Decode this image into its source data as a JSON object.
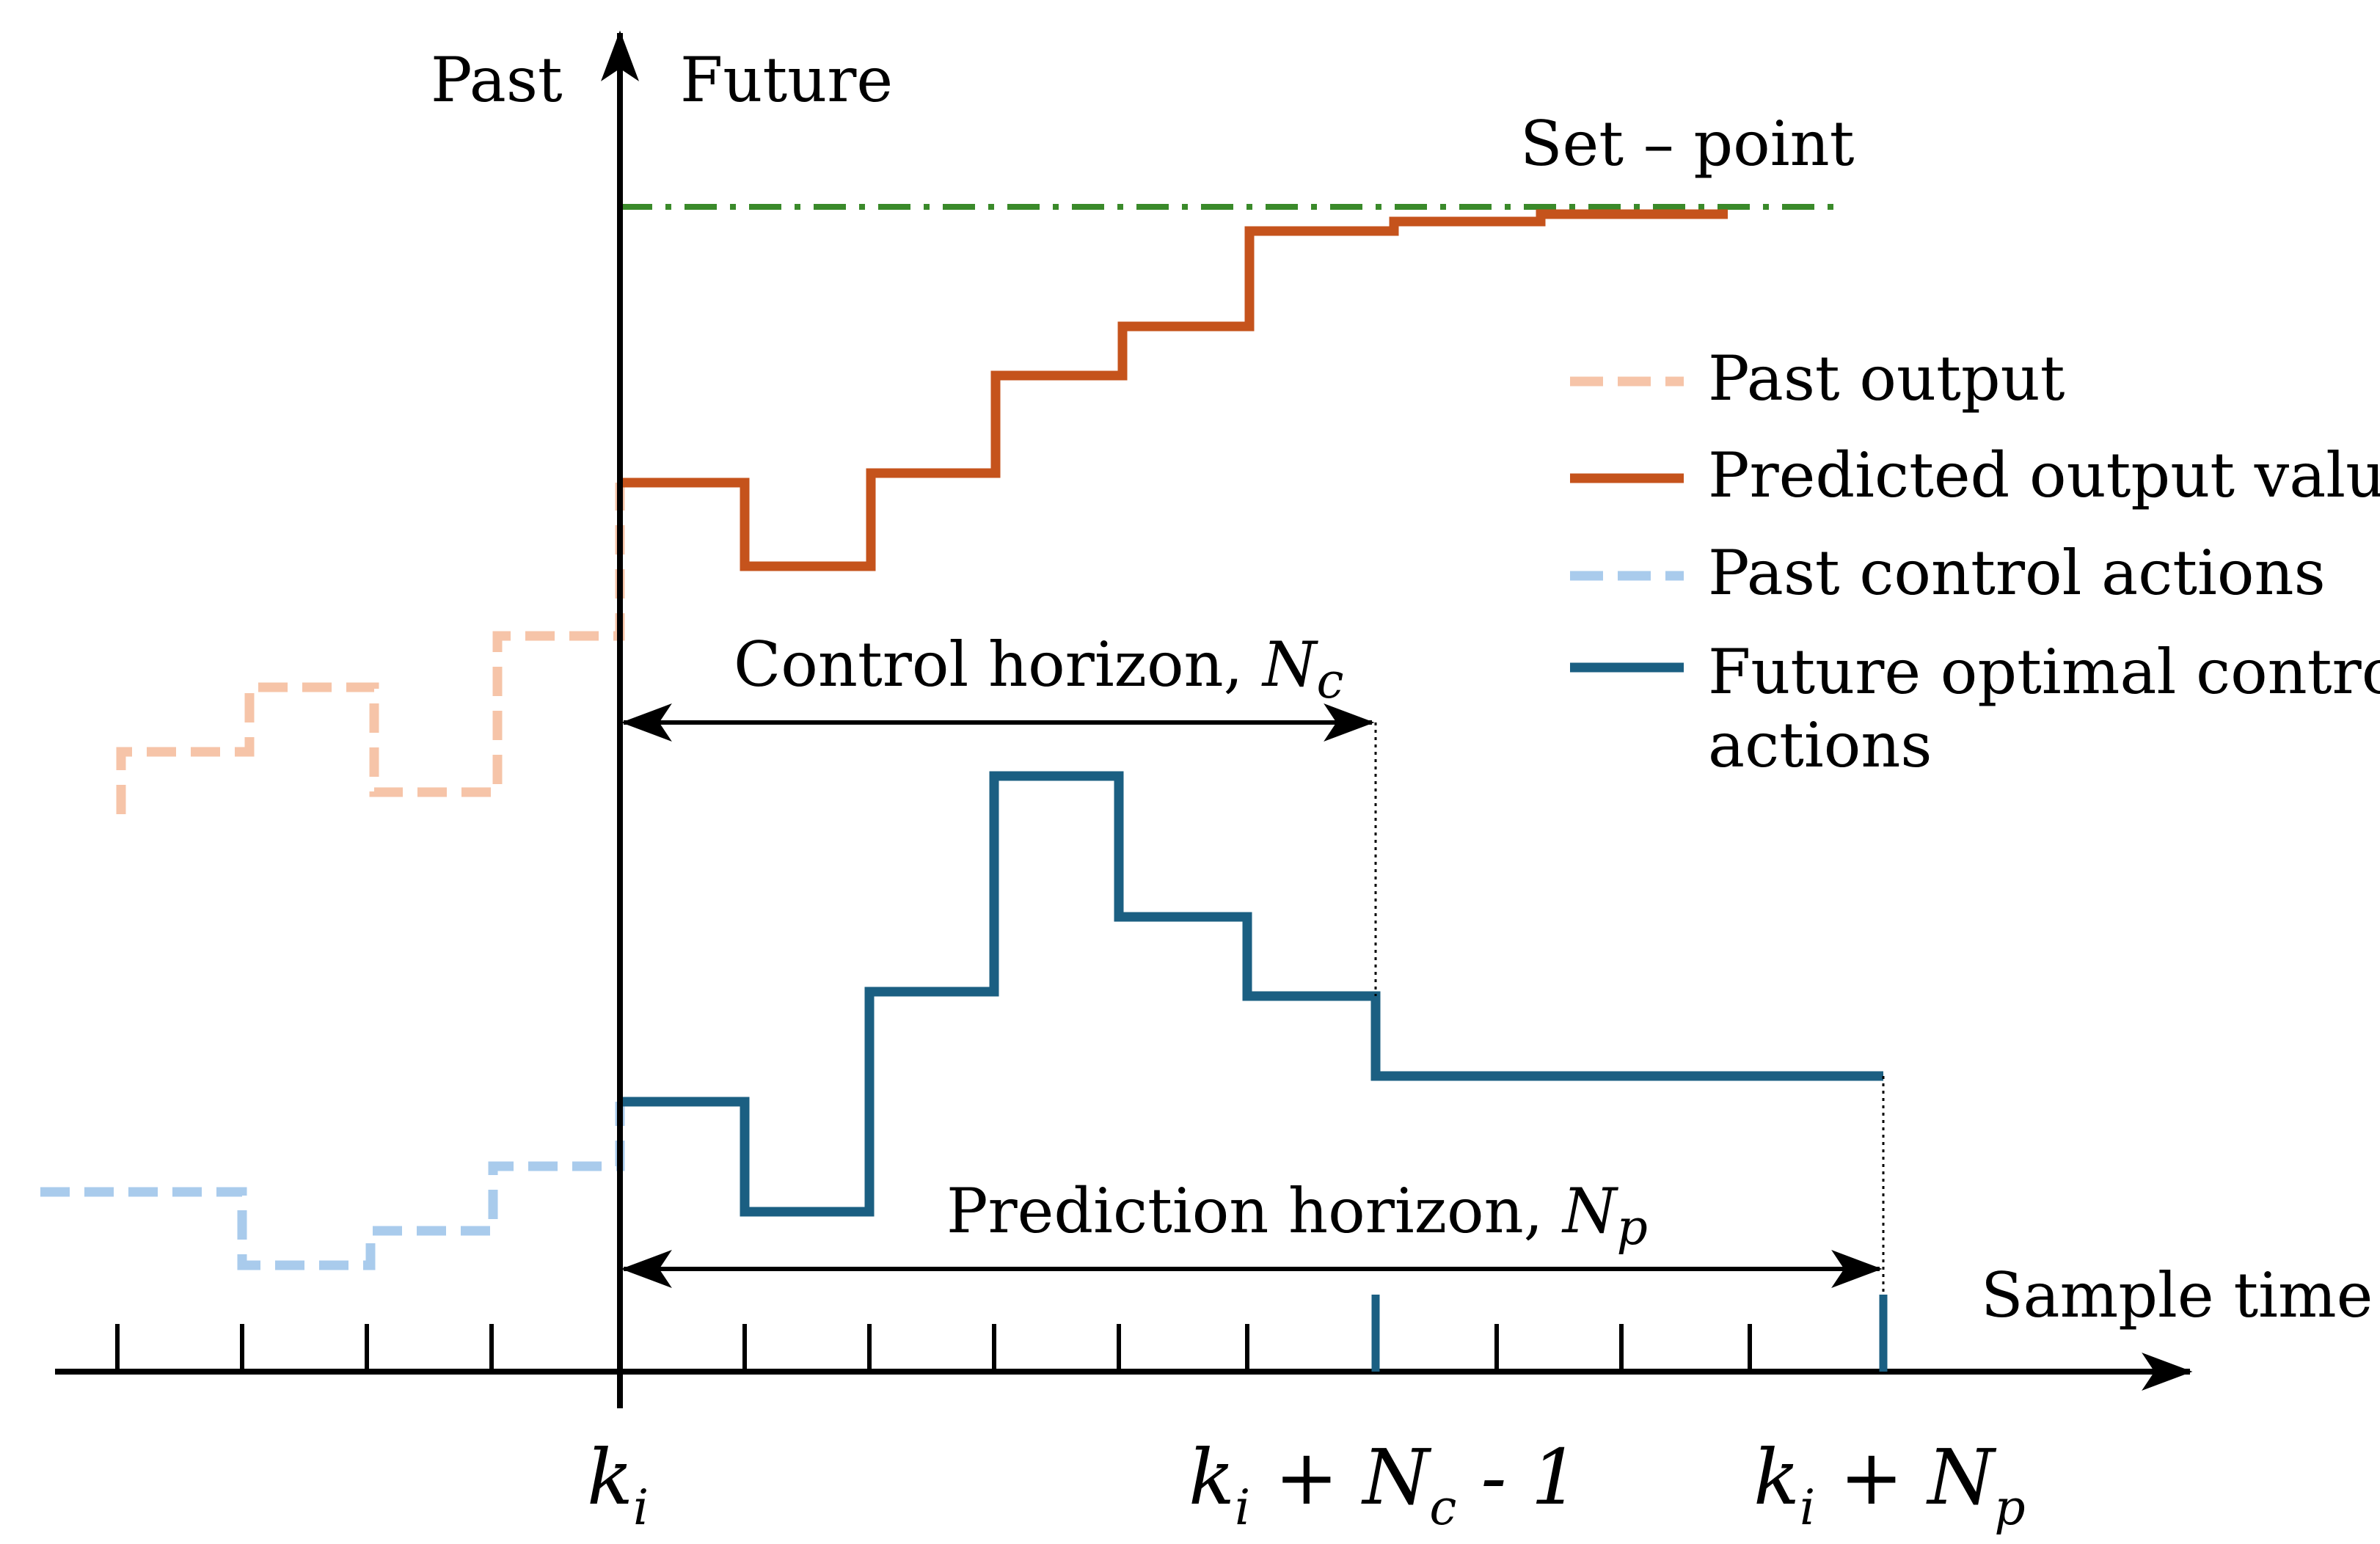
{
  "header": {
    "past_label": "Past",
    "future_label": "Future"
  },
  "setpoint": {
    "label": "Set – point",
    "color": "#3a8a2a"
  },
  "axis": {
    "x_label": "Sample time ",
    "x_label_var": "k"
  },
  "legend": {
    "items": [
      {
        "label": "Past output",
        "color": "#f6c4a8",
        "style": "dashed"
      },
      {
        "label": "Predicted output values",
        "color": "#c5531c",
        "style": "solid"
      },
      {
        "label": "Past control actions",
        "color": "#a9cbec",
        "style": "dashed"
      },
      {
        "label": "Future optimal control",
        "label2": "actions",
        "color": "#1b5f82",
        "style": "solid"
      }
    ]
  },
  "horizons": {
    "control": {
      "text": "Control horizon, ",
      "var": "N",
      "sub": "c"
    },
    "prediction": {
      "text": "Prediction horizon, ",
      "var": "N",
      "sub": "p"
    }
  },
  "ticks": {
    "ki": {
      "var": "k",
      "sub": "i"
    },
    "nc": {
      "var": "k",
      "sub": "i",
      "mid": " + ",
      "var2": "N",
      "sub2": "c",
      "tail": " - 1"
    },
    "np": {
      "var": "k",
      "sub": "i",
      "mid": " + ",
      "var2": "N",
      "sub2": "p"
    }
  }
}
